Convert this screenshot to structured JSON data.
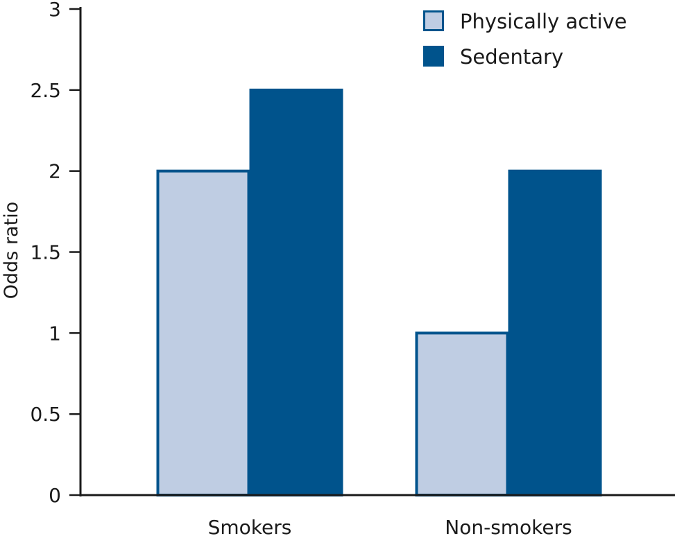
{
  "chart_data": {
    "type": "bar",
    "categories": [
      "Smokers",
      "Non-smokers"
    ],
    "series": [
      {
        "name": "Physically active",
        "values": [
          2.0,
          1.0
        ],
        "color": "#bfcde3"
      },
      {
        "name": "Sedentary",
        "values": [
          2.5,
          2.0
        ],
        "color": "#00538c"
      }
    ],
    "xlabel": "",
    "ylabel": "Odds ratio",
    "ylim": [
      0,
      3
    ],
    "yticks": [
      "0",
      "0.5",
      "1",
      "1.5",
      "2",
      "2.5",
      "3"
    ],
    "grid": false,
    "legend_position": "top-right",
    "bar_outline_color": "#00538c",
    "axis_color": "#1a1a1a"
  }
}
